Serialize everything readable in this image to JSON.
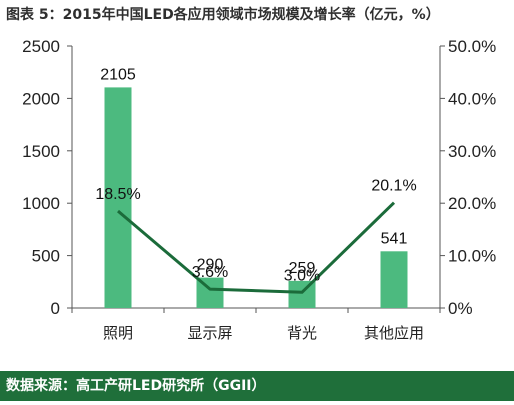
{
  "title": "图表 5：2015年中国LED各应用领域市场规模及增长率（亿元，%）",
  "footer": "数据来源：高工产研LED研究所（GGII）",
  "colors": {
    "bar": "#4cba7f",
    "line": "#1b6b3a",
    "footer_bg": "#1f6f3a"
  },
  "chart_data": {
    "type": "bar",
    "categories": [
      "照明",
      "显示屏",
      "背光",
      "其他应用"
    ],
    "series": [
      {
        "type": "bar",
        "values": [
          2105,
          290,
          259,
          541
        ]
      },
      {
        "type": "line",
        "axis": "right",
        "values": [
          18.5,
          3.6,
          3.0,
          20.1
        ]
      }
    ],
    "bar_labels": [
      "2105",
      "290",
      "259",
      "541"
    ],
    "line_labels": [
      "18.5%",
      "3.6%",
      "3.0%",
      "20.1%"
    ],
    "y_left": {
      "ylim": [
        0,
        2500
      ],
      "ticks": [
        "0",
        "500",
        "1000",
        "1500",
        "2000",
        "2500"
      ]
    },
    "y_right": {
      "ylim": [
        0,
        50
      ],
      "ticks": [
        "0%",
        "10.0%",
        "20.0%",
        "30.0%",
        "40.0%",
        "50.0%"
      ]
    },
    "grid": false,
    "legend": "none"
  }
}
